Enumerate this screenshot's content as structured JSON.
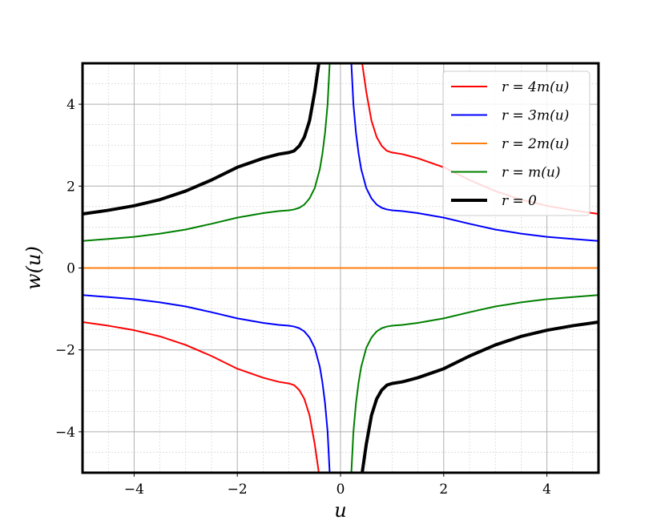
{
  "chart_data": {
    "type": "line",
    "xlabel": "u",
    "ylabel": "w(u)",
    "xlim": [
      -5,
      5
    ],
    "ylim": [
      -5,
      5
    ],
    "x_ticks": [
      -4,
      -2,
      0,
      2,
      4
    ],
    "y_ticks": [
      -4,
      -2,
      0,
      2,
      4
    ],
    "x_tick_labels": [
      "−4",
      "−2",
      "0",
      "2",
      "4"
    ],
    "y_tick_labels": [
      "−4",
      "−2",
      "0",
      "2",
      "4"
    ],
    "grid": true,
    "minor_grid": true,
    "legend_position": "top-right",
    "series": [
      {
        "name": "r = 4m(u)",
        "color": "#ff0000",
        "width": 2,
        "branches": [
          {
            "x": [
              0.42,
              0.5,
              0.6,
              0.7,
              0.8,
              0.9,
              1.0,
              1.2,
              1.5,
              2.0,
              2.5,
              3.0,
              3.5,
              4.0,
              4.5,
              5.0
            ],
            "y": [
              5.0,
              4.3,
              3.6,
              3.2,
              2.98,
              2.86,
              2.82,
              2.78,
              2.68,
              2.46,
              2.15,
              1.88,
              1.67,
              1.52,
              1.41,
              1.32
            ]
          },
          {
            "x": [
              -5.0,
              -4.5,
              -4.0,
              -3.5,
              -3.0,
              -2.5,
              -2.0,
              -1.5,
              -1.2,
              -1.0,
              -0.9,
              -0.8,
              -0.7,
              -0.6,
              -0.5,
              -0.42
            ],
            "y": [
              -1.32,
              -1.41,
              -1.52,
              -1.67,
              -1.88,
              -2.15,
              -2.46,
              -2.68,
              -2.78,
              -2.82,
              -2.86,
              -2.98,
              -3.2,
              -3.6,
              -4.3,
              -5.0
            ]
          }
        ]
      },
      {
        "name": "r = 3m(u)",
        "color": "#0000ff",
        "width": 2,
        "branches": [
          {
            "x": [
              0.21,
              0.25,
              0.3,
              0.35,
              0.4,
              0.5,
              0.6,
              0.7,
              0.8,
              0.9,
              1.0,
              1.2,
              1.5,
              2.0,
              2.5,
              3.0,
              3.5,
              4.0,
              4.5,
              5.0
            ],
            "y": [
              5.0,
              4.0,
              3.3,
              2.8,
              2.42,
              1.95,
              1.7,
              1.55,
              1.47,
              1.43,
              1.41,
              1.39,
              1.34,
              1.23,
              1.08,
              0.94,
              0.84,
              0.76,
              0.71,
              0.66
            ]
          },
          {
            "x": [
              -5.0,
              -4.5,
              -4.0,
              -3.5,
              -3.0,
              -2.5,
              -2.0,
              -1.5,
              -1.2,
              -1.0,
              -0.9,
              -0.8,
              -0.7,
              -0.6,
              -0.5,
              -0.4,
              -0.35,
              -0.3,
              -0.25,
              -0.21
            ],
            "y": [
              -0.66,
              -0.71,
              -0.76,
              -0.84,
              -0.94,
              -1.08,
              -1.23,
              -1.34,
              -1.39,
              -1.41,
              -1.43,
              -1.47,
              -1.55,
              -1.7,
              -1.95,
              -2.42,
              -2.8,
              -3.3,
              -4.0,
              -5.0
            ]
          }
        ]
      },
      {
        "name": "r = 2m(u)",
        "color": "#ff7f0e",
        "width": 2,
        "branches": [
          {
            "x": [
              -5.0,
              5.0
            ],
            "y": [
              0.0,
              0.0
            ]
          }
        ]
      },
      {
        "name": "r = m(u)",
        "color": "#008000",
        "width": 2,
        "branches": [
          {
            "x": [
              -5.0,
              -4.5,
              -4.0,
              -3.5,
              -3.0,
              -2.5,
              -2.0,
              -1.5,
              -1.2,
              -1.0,
              -0.9,
              -0.8,
              -0.7,
              -0.6,
              -0.5,
              -0.4,
              -0.35,
              -0.3,
              -0.25,
              -0.21
            ],
            "y": [
              0.66,
              0.71,
              0.76,
              0.84,
              0.94,
              1.08,
              1.23,
              1.34,
              1.39,
              1.41,
              1.43,
              1.47,
              1.55,
              1.7,
              1.95,
              2.42,
              2.8,
              3.3,
              4.0,
              5.0
            ]
          },
          {
            "x": [
              0.21,
              0.25,
              0.3,
              0.35,
              0.4,
              0.5,
              0.6,
              0.7,
              0.8,
              0.9,
              1.0,
              1.2,
              1.5,
              2.0,
              2.5,
              3.0,
              3.5,
              4.0,
              4.5,
              5.0
            ],
            "y": [
              -5.0,
              -4.0,
              -3.3,
              -2.8,
              -2.42,
              -1.95,
              -1.7,
              -1.55,
              -1.47,
              -1.43,
              -1.41,
              -1.39,
              -1.34,
              -1.23,
              -1.08,
              -0.94,
              -0.84,
              -0.76,
              -0.71,
              -0.66
            ]
          }
        ]
      },
      {
        "name": "r = 0",
        "color": "#000000",
        "width": 4,
        "branches": [
          {
            "x": [
              -5.0,
              -4.5,
              -4.0,
              -3.5,
              -3.0,
              -2.5,
              -2.0,
              -1.5,
              -1.2,
              -1.0,
              -0.9,
              -0.8,
              -0.7,
              -0.6,
              -0.5,
              -0.42
            ],
            "y": [
              1.32,
              1.41,
              1.52,
              1.67,
              1.88,
              2.15,
              2.46,
              2.68,
              2.78,
              2.82,
              2.86,
              2.98,
              3.2,
              3.6,
              4.3,
              5.0
            ]
          },
          {
            "x": [
              0.42,
              0.5,
              0.6,
              0.7,
              0.8,
              0.9,
              1.0,
              1.2,
              1.5,
              2.0,
              2.5,
              3.0,
              3.5,
              4.0,
              4.5,
              5.0
            ],
            "y": [
              -5.0,
              -4.3,
              -3.6,
              -3.2,
              -2.98,
              -2.86,
              -2.82,
              -2.78,
              -2.68,
              -2.46,
              -2.15,
              -1.88,
              -1.67,
              -1.52,
              -1.41,
              -1.32
            ]
          }
        ]
      }
    ]
  }
}
